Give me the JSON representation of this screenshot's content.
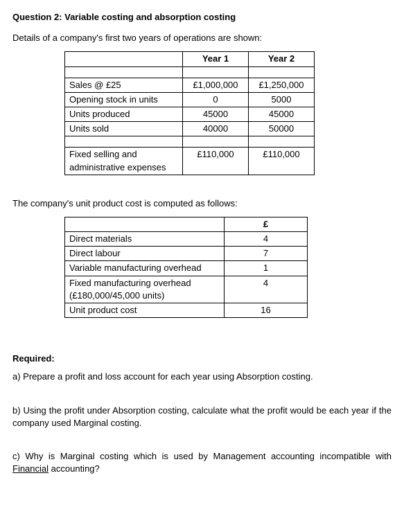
{
  "title": "Question 2: Variable costing and absorption costing",
  "intro": "Details of a company's first two years of operations are shown:",
  "table1": {
    "headers": {
      "blank": "",
      "y1": "Year 1",
      "y2": "Year 2"
    },
    "rows": [
      {
        "label": "Sales @ £25",
        "y1": "£1,000,000",
        "y2": "£1,250,000"
      },
      {
        "label": "Opening stock in units",
        "y1": "0",
        "y2": "5000"
      },
      {
        "label": "Units produced",
        "y1": "45000",
        "y2": "45000"
      },
      {
        "label": "Units sold",
        "y1": "40000",
        "y2": "50000"
      }
    ],
    "fixedRow": {
      "label": "Fixed selling and administrative expenses",
      "y1": "£110,000",
      "y2": "£110,000"
    }
  },
  "subheading": "The company's unit product cost is computed as follows:",
  "table2": {
    "header": "£",
    "rows": [
      {
        "label": "Direct materials",
        "val": "4"
      },
      {
        "label": "Direct labour",
        "val": "7"
      },
      {
        "label": "Variable manufacturing overhead",
        "val": "1"
      },
      {
        "label": "Fixed manufacturing overhead (£180,000/45,000 units)",
        "val": "4"
      },
      {
        "label": "Unit product cost",
        "val": "16"
      }
    ]
  },
  "required": {
    "heading": "Required:",
    "a": "a) Prepare a profit and loss account for each year using Absorption costing.",
    "b": "b) Using the profit under Absorption costing, calculate what the profit would be each year if the company used Marginal costing.",
    "c_pre": "c) Why is Marginal costing which is used by Management accounting incompatible with ",
    "c_underlined": "Financial",
    "c_post": " accounting?"
  }
}
